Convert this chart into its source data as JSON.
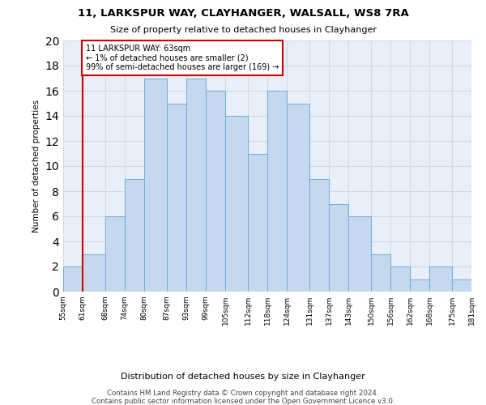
{
  "title": "11, LARKSPUR WAY, CLAYHANGER, WALSALL, WS8 7RA",
  "subtitle": "Size of property relative to detached houses in Clayhanger",
  "xlabel": "Distribution of detached houses by size in Clayhanger",
  "ylabel": "Number of detached properties",
  "bin_labels": [
    "55sqm",
    "61sqm",
    "68sqm",
    "74sqm",
    "80sqm",
    "87sqm",
    "93sqm",
    "99sqm",
    "105sqm",
    "112sqm",
    "118sqm",
    "124sqm",
    "131sqm",
    "137sqm",
    "143sqm",
    "150sqm",
    "156sqm",
    "162sqm",
    "168sqm",
    "175sqm",
    "181sqm"
  ],
  "bar_heights": [
    2,
    3,
    6,
    9,
    17,
    15,
    17,
    16,
    14,
    11,
    16,
    15,
    9,
    7,
    6,
    3,
    2,
    1,
    2,
    1
  ],
  "bar_color": "#c5d8ef",
  "bar_edge_color": "#6baed6",
  "property_line_color": "#cc0000",
  "annotation_text": "11 LARKSPUR WAY: 63sqm\n← 1% of detached houses are smaller (2)\n99% of semi-detached houses are larger (169) →",
  "annotation_box_color": "#ffffff",
  "annotation_box_edge": "#cc0000",
  "ylim": [
    0,
    20
  ],
  "yticks": [
    0,
    2,
    4,
    6,
    8,
    10,
    12,
    14,
    16,
    18,
    20
  ],
  "footer_line1": "Contains HM Land Registry data © Crown copyright and database right 2024.",
  "footer_line2": "Contains public sector information licensed under the Open Government Licence v3.0.",
  "bg_color": "#e8eff8",
  "fig_bg_color": "#ffffff",
  "grid_color": "#d0d8e8"
}
